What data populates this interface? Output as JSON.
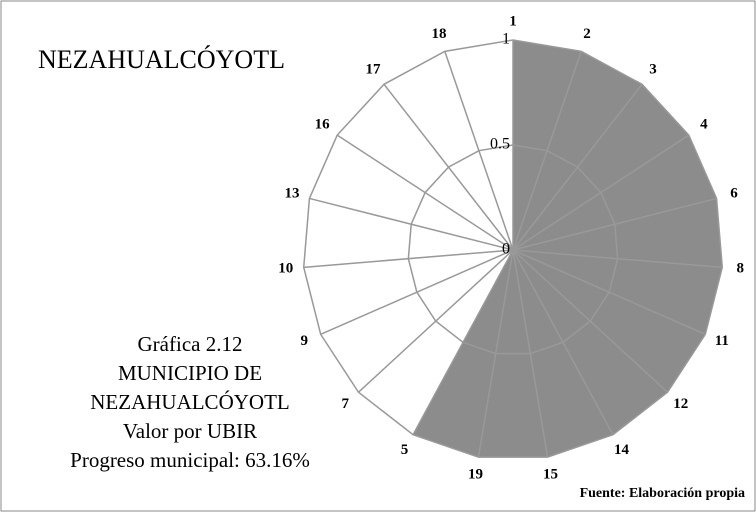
{
  "chart_data": {
    "type": "radar",
    "title": "NEZAHUALCÓYOTL",
    "caption": [
      "Gráfica 2.12",
      "MUNICIPIO DE",
      "NEZAHUALCÓYOTL",
      "Valor por UBIR",
      "Progreso municipal: 63.16%"
    ],
    "source": "Fuente: Elaboración propia",
    "categories": [
      "1",
      "2",
      "3",
      "4",
      "6",
      "8",
      "11",
      "12",
      "14",
      "15",
      "19",
      "5",
      "7",
      "9",
      "10",
      "13",
      "16",
      "17",
      "18"
    ],
    "values": [
      1,
      1,
      1,
      1,
      1,
      1,
      1,
      1,
      1,
      1,
      1,
      1,
      0,
      0,
      0,
      0,
      0,
      0,
      0
    ],
    "color": "#8c8c8c",
    "rlim": [
      0,
      1
    ],
    "rticks": [
      0,
      0.5,
      1
    ],
    "grid": true
  }
}
